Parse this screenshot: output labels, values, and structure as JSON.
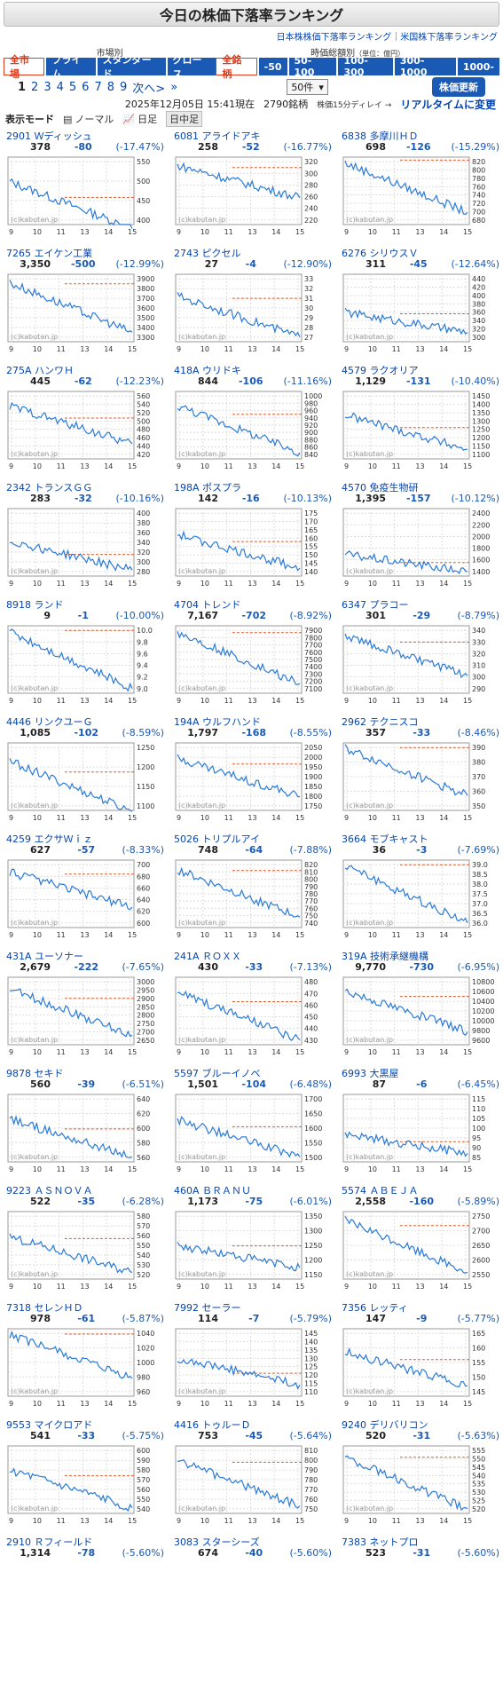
{
  "title": "今日の株価下落率ランキング",
  "sublinks": {
    "jp": "日本株株価下落率ランキング",
    "sep": "｜",
    "us": "米国株下落率ランキング"
  },
  "market": {
    "head": "市場別",
    "buttons": [
      "全市場",
      "プライム",
      "スタンダード",
      "グロース"
    ],
    "active": 0
  },
  "cap": {
    "head": "時価総額別",
    "unit": "（単位：億円）",
    "buttons": [
      "全銘柄",
      "-50",
      "50-100",
      "100-300",
      "300-1000",
      "1000-"
    ],
    "active": 0
  },
  "pager": {
    "current": "1",
    "pages": [
      "2",
      "3",
      "4",
      "5",
      "6",
      "7",
      "8",
      "9"
    ],
    "next": "次へ>",
    "last": "»",
    "per": "50件",
    "per_arrow": "▾"
  },
  "update_button": "株価更新",
  "info": {
    "datetime": "2025年12月05日 15:41現在",
    "count": "2790銘柄",
    "delay": "株価15分ディレイ →",
    "realtime": "リアルタイムに変更"
  },
  "modes": {
    "label": "表示モード",
    "normal": "ノーマル",
    "daily": "日足",
    "intraday": "日中足"
  },
  "watermark": "(c)kabutan.jp",
  "xticks": [
    "9",
    "10",
    "11",
    "13",
    "14",
    "15"
  ],
  "colors": {
    "line": "#2a7ad8",
    "ref": "#e05a2a",
    "up": "#1a5ab5",
    "btn": "#1a5ab5"
  },
  "stocks": [
    {
      "code": "2901",
      "name": "Ｗディッシュ",
      "price": "378",
      "chg": "-80",
      "pct": "(-17.47%)",
      "yticks": [
        "550",
        "500",
        "450",
        "400"
      ],
      "ref": 458
    },
    {
      "code": "6081",
      "name": "アライドアキ",
      "price": "258",
      "chg": "-52",
      "pct": "(-16.77%)",
      "yticks": [
        "320",
        "300",
        "280",
        "260",
        "240",
        "220"
      ],
      "ref": 310
    },
    {
      "code": "6838",
      "name": "多摩川ＨＤ",
      "price": "698",
      "chg": "-126",
      "pct": "(-15.29%)",
      "yticks": [
        "820",
        "800",
        "780",
        "760",
        "740",
        "720",
        "700",
        "680"
      ],
      "ref": 824
    },
    {
      "code": "7265",
      "name": "エイケン工業",
      "price": "3,350",
      "chg": "-500",
      "pct": "(-12.99%)",
      "yticks": [
        "3900",
        "3800",
        "3700",
        "3600",
        "3500",
        "3400",
        "3300"
      ],
      "ref": 3850
    },
    {
      "code": "2743",
      "name": "ピクセル",
      "price": "27",
      "chg": "-4",
      "pct": "(-12.90%)",
      "yticks": [
        "33",
        "32",
        "31",
        "30",
        "29",
        "28",
        "27"
      ],
      "ref": 31
    },
    {
      "code": "6276",
      "name": "シリウスＶ",
      "price": "311",
      "chg": "-45",
      "pct": "(-12.64%)",
      "yticks": [
        "440",
        "420",
        "400",
        "380",
        "360",
        "340",
        "320",
        "300"
      ],
      "ref": 356
    },
    {
      "code": "275A",
      "name": "ハンワＨ",
      "price": "445",
      "chg": "-62",
      "pct": "(-12.23%)",
      "yticks": [
        "560",
        "540",
        "520",
        "500",
        "480",
        "460",
        "440",
        "420"
      ],
      "ref": 507
    },
    {
      "code": "418A",
      "name": "ウリドキ",
      "price": "844",
      "chg": "-106",
      "pct": "(-11.16%)",
      "yticks": [
        "1000",
        "980",
        "960",
        "940",
        "920",
        "900",
        "880",
        "860",
        "840"
      ],
      "ref": 950
    },
    {
      "code": "4579",
      "name": "ラクオリア",
      "price": "1,129",
      "chg": "-131",
      "pct": "(-10.40%)",
      "yticks": [
        "1450",
        "1400",
        "1350",
        "1300",
        "1250",
        "1200",
        "1150",
        "1100"
      ],
      "ref": 1260
    },
    {
      "code": "2342",
      "name": "トランスＧＧ",
      "price": "283",
      "chg": "-32",
      "pct": "(-10.16%)",
      "yticks": [
        "400",
        "380",
        "360",
        "340",
        "320",
        "300",
        "280"
      ],
      "ref": 315
    },
    {
      "code": "198A",
      "name": "ポスプラ",
      "price": "142",
      "chg": "-16",
      "pct": "(-10.13%)",
      "yticks": [
        "175",
        "170",
        "165",
        "160",
        "155",
        "150",
        "145",
        "140"
      ],
      "ref": 158
    },
    {
      "code": "4570",
      "name": "免疫生物研",
      "price": "1,395",
      "chg": "-157",
      "pct": "(-10.12%)",
      "yticks": [
        "2400",
        "2200",
        "2000",
        "1800",
        "1600",
        "1400"
      ],
      "ref": 1552
    },
    {
      "code": "8918",
      "name": "ランド",
      "price": "9",
      "chg": "-1",
      "pct": "(-10.00%)",
      "yticks": [
        "10.0",
        "9.8",
        "9.6",
        "9.4",
        "9.2",
        "9.0"
      ],
      "ref": 10
    },
    {
      "code": "4704",
      "name": "トレンド",
      "price": "7,167",
      "chg": "-702",
      "pct": "(-8.92%)",
      "yticks": [
        "7900",
        "7800",
        "7700",
        "7600",
        "7500",
        "7400",
        "7300",
        "7200",
        "7100"
      ],
      "ref": 7869
    },
    {
      "code": "6347",
      "name": "プラコー",
      "price": "301",
      "chg": "-29",
      "pct": "(-8.79%)",
      "yticks": [
        "340",
        "330",
        "320",
        "310",
        "300",
        "290"
      ],
      "ref": 330
    },
    {
      "code": "4446",
      "name": "リンクユーＧ",
      "price": "1,085",
      "chg": "-102",
      "pct": "(-8.59%)",
      "yticks": [
        "1250",
        "1200",
        "1150",
        "1100"
      ],
      "ref": 1187
    },
    {
      "code": "194A",
      "name": "ウルフハンド",
      "price": "1,797",
      "chg": "-168",
      "pct": "(-8.55%)",
      "yticks": [
        "2050",
        "2000",
        "1950",
        "1900",
        "1850",
        "1800",
        "1750"
      ],
      "ref": 1965
    },
    {
      "code": "2962",
      "name": "テクニスコ",
      "price": "357",
      "chg": "-33",
      "pct": "(-8.46%)",
      "yticks": [
        "390",
        "380",
        "370",
        "360",
        "350"
      ],
      "ref": 390
    },
    {
      "code": "4259",
      "name": "エクサＷｉｚ",
      "price": "627",
      "chg": "-57",
      "pct": "(-8.33%)",
      "yticks": [
        "700",
        "680",
        "660",
        "640",
        "620",
        "600"
      ],
      "ref": 684
    },
    {
      "code": "5026",
      "name": "トリプルアイ",
      "price": "748",
      "chg": "-64",
      "pct": "(-7.88%)",
      "yticks": [
        "820",
        "810",
        "800",
        "790",
        "780",
        "770",
        "760",
        "750",
        "740"
      ],
      "ref": 812
    },
    {
      "code": "3664",
      "name": "モブキャスト",
      "price": "36",
      "chg": "-3",
      "pct": "(-7.69%)",
      "yticks": [
        "39.0",
        "38.5",
        "38.0",
        "37.5",
        "37.0",
        "36.5",
        "36.0"
      ],
      "ref": 39
    },
    {
      "code": "431A",
      "name": "ユーソナー",
      "price": "2,679",
      "chg": "-222",
      "pct": "(-7.65%)",
      "yticks": [
        "3000",
        "2950",
        "2900",
        "2850",
        "2800",
        "2750",
        "2700",
        "2650"
      ],
      "ref": 2901
    },
    {
      "code": "241A",
      "name": "ＲＯＸＸ",
      "price": "430",
      "chg": "-33",
      "pct": "(-7.13%)",
      "yticks": [
        "480",
        "470",
        "460",
        "450",
        "440",
        "430"
      ],
      "ref": 463
    },
    {
      "code": "319A",
      "name": "技術承継機構",
      "price": "9,770",
      "chg": "-730",
      "pct": "(-6.95%)",
      "yticks": [
        "10800",
        "10600",
        "10400",
        "10200",
        "10000",
        "9800",
        "9600"
      ],
      "ref": 10500
    },
    {
      "code": "9878",
      "name": "セキド",
      "price": "560",
      "chg": "-39",
      "pct": "(-6.51%)",
      "yticks": [
        "640",
        "620",
        "600",
        "580",
        "560"
      ],
      "ref": 599
    },
    {
      "code": "5597",
      "name": "ブルーイノベ",
      "price": "1,501",
      "chg": "-104",
      "pct": "(-6.48%)",
      "yticks": [
        "1700",
        "1650",
        "1600",
        "1550",
        "1500"
      ],
      "ref": 1605
    },
    {
      "code": "6993",
      "name": "大黒屋",
      "price": "87",
      "chg": "-6",
      "pct": "(-6.45%)",
      "yticks": [
        "115",
        "110",
        "105",
        "100",
        "95",
        "90",
        "85"
      ],
      "ref": 93
    },
    {
      "code": "9223",
      "name": "ＡＳＮＯＶＡ",
      "price": "522",
      "chg": "-35",
      "pct": "(-6.28%)",
      "yticks": [
        "580",
        "570",
        "560",
        "550",
        "540",
        "530",
        "520"
      ],
      "ref": 557
    },
    {
      "code": "460A",
      "name": "ＢＲＡＮＵ",
      "price": "1,173",
      "chg": "-75",
      "pct": "(-6.01%)",
      "yticks": [
        "1350",
        "1300",
        "1250",
        "1200",
        "1150"
      ],
      "ref": 1248
    },
    {
      "code": "5574",
      "name": "ＡＢＥＪＡ",
      "price": "2,558",
      "chg": "-160",
      "pct": "(-5.89%)",
      "yticks": [
        "2750",
        "2700",
        "2650",
        "2600",
        "2550"
      ],
      "ref": 2718
    },
    {
      "code": "7318",
      "name": "セレンＨＤ",
      "price": "978",
      "chg": "-61",
      "pct": "(-5.87%)",
      "yticks": [
        "1040",
        "1020",
        "1000",
        "980",
        "960"
      ],
      "ref": 1039
    },
    {
      "code": "7992",
      "name": "セーラー",
      "price": "114",
      "chg": "-7",
      "pct": "(-5.79%)",
      "yticks": [
        "145",
        "140",
        "135",
        "130",
        "125",
        "120",
        "115",
        "110"
      ],
      "ref": 121
    },
    {
      "code": "7356",
      "name": "レッティ",
      "price": "147",
      "chg": "-9",
      "pct": "(-5.77%)",
      "yticks": [
        "165",
        "160",
        "155",
        "150",
        "145"
      ],
      "ref": 156
    },
    {
      "code": "9553",
      "name": "マイクロアド",
      "price": "541",
      "chg": "-33",
      "pct": "(-5.75%)",
      "yticks": [
        "600",
        "590",
        "580",
        "570",
        "560",
        "550",
        "540"
      ],
      "ref": 574
    },
    {
      "code": "4416",
      "name": "トゥルーＤ",
      "price": "753",
      "chg": "-45",
      "pct": "(-5.64%)",
      "yticks": [
        "810",
        "800",
        "790",
        "780",
        "770",
        "760",
        "750"
      ],
      "ref": 798
    },
    {
      "code": "9240",
      "name": "デリバリコン",
      "price": "520",
      "chg": "-31",
      "pct": "(-5.63%)",
      "yticks": [
        "555",
        "550",
        "545",
        "540",
        "535",
        "530",
        "525",
        "520"
      ],
      "ref": 551
    },
    {
      "code": "2910",
      "name": "Ｒフィールド",
      "price": "1,314",
      "chg": "-78",
      "pct": "(-5.60%)",
      "yticks": [],
      "ref": 0
    },
    {
      "code": "3083",
      "name": "スターシーズ",
      "price": "674",
      "chg": "-40",
      "pct": "(-5.60%)",
      "yticks": [],
      "ref": 0
    },
    {
      "code": "7383",
      "name": "ネットプロ",
      "price": "523",
      "chg": "-31",
      "pct": "(-5.60%)",
      "yticks": [],
      "ref": 0
    }
  ]
}
